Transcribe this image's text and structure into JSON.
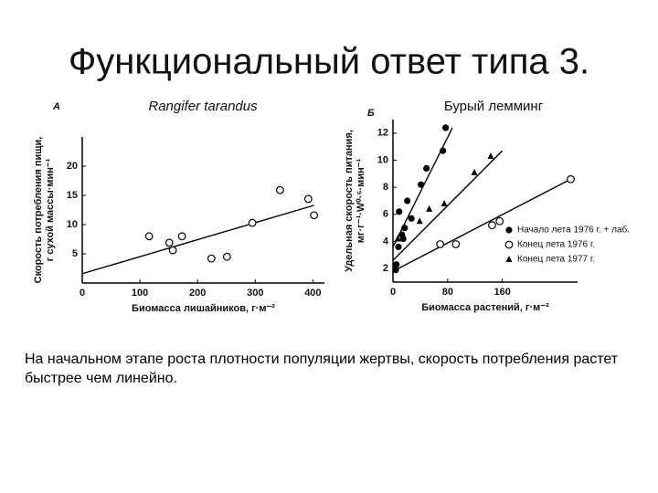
{
  "title": "Функциональный ответ типа 3.",
  "caption": "На начальном этапе роста плотности популяции жертвы, скорость потребления растет быстрее чем линейно.",
  "chart_data": [
    {
      "type": "scatter",
      "panel": "А",
      "title": "Rangifer tarandus",
      "x_label": "Биомасса лишайников, г·м⁻²",
      "y_label": [
        "Скорость потребления пищи,",
        "г сухой массы·мин⁻¹"
      ],
      "xlim": [
        0,
        420
      ],
      "ylim": [
        0,
        25
      ],
      "xticks": [
        0,
        100,
        200,
        300,
        400
      ],
      "yticks": [
        5,
        10,
        15,
        20
      ],
      "series": [
        {
          "marker": "open-circle",
          "color": "#000000",
          "x": [
            116,
            151,
            157,
            173,
            224,
            251,
            295,
            343,
            392,
            402
          ],
          "values": [
            8.0,
            6.9,
            5.6,
            8.0,
            4.2,
            4.5,
            10.3,
            15.9,
            14.4,
            11.6
          ]
        }
      ],
      "fits": [
        {
          "x": [
            0,
            402
          ],
          "y": [
            1.6,
            13.3
          ]
        }
      ]
    },
    {
      "type": "scatter",
      "panel": "Б",
      "title": "Бурый лемминг",
      "x_label": "Биомасса растений, г·м⁻²",
      "y_label": [
        "Удельная скорость питания,",
        "мг·г⁻¹·W⁰·⁵·мин⁻¹"
      ],
      "xlim": [
        0,
        270
      ],
      "ylim": [
        1,
        13
      ],
      "xticks": [
        0,
        80,
        160
      ],
      "yticks": [
        2,
        4,
        6,
        8,
        10,
        12
      ],
      "series": [
        {
          "name": "Начало лета 1976 г. + лаб.",
          "marker": "filled-circle",
          "color": "#000000",
          "x": [
            77,
            73,
            49,
            41,
            21,
            9,
            27,
            17,
            13,
            15,
            8,
            5,
            4
          ],
          "values": [
            12.4,
            10.7,
            9.4,
            8.2,
            7.0,
            6.2,
            5.7,
            5.0,
            4.5,
            4.2,
            3.6,
            2.3,
            1.9
          ]
        },
        {
          "name": "Конец лета 1976 г.",
          "marker": "open-circle",
          "color": "#000000",
          "x": [
            260,
            156,
            145,
            92,
            69
          ],
          "values": [
            8.6,
            5.5,
            5.2,
            3.8,
            3.8
          ]
        },
        {
          "name": "Конец лета 1977 г.",
          "marker": "triangle",
          "color": "#000000",
          "x": [
            143,
            119,
            75,
            53,
            39,
            7
          ],
          "values": [
            10.3,
            9.1,
            6.8,
            6.4,
            5.5,
            4.2
          ]
        }
      ],
      "fits": [
        {
          "x": [
            0,
            87
          ],
          "y": [
            3.6,
            12.4
          ]
        },
        {
          "x": [
            0,
            260
          ],
          "y": [
            1.8,
            8.6
          ]
        },
        {
          "x": [
            0,
            160
          ],
          "y": [
            2.6,
            10.7
          ]
        }
      ]
    }
  ]
}
